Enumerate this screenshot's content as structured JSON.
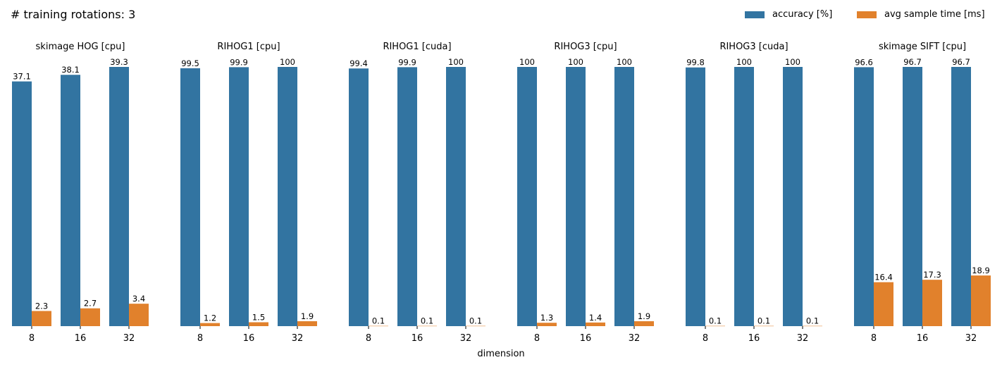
{
  "chart_data": {
    "type": "bar",
    "suptitle": "# training rotations: 3",
    "xlabel": "dimension",
    "ylabel": "",
    "legend_position": "top-right",
    "grid": false,
    "series": [
      {
        "name": "accuracy [%]",
        "color": "#3274a1"
      },
      {
        "name": "avg sample time [ms]",
        "color": "#e1812c"
      }
    ],
    "panels": [
      {
        "title": "skimage HOG [cpu]",
        "categories": [
          "8",
          "16",
          "32"
        ],
        "series_values": [
          [
            37.1,
            38.1,
            39.3
          ],
          [
            2.3,
            2.7,
            3.4
          ]
        ],
        "labels": [
          [
            "37.1",
            "38.1",
            "39.3"
          ],
          [
            "2.3",
            "2.7",
            "3.4"
          ]
        ]
      },
      {
        "title": "RIHOG1 [cpu]",
        "categories": [
          "8",
          "16",
          "32"
        ],
        "series_values": [
          [
            99.5,
            99.9,
            100
          ],
          [
            1.2,
            1.5,
            1.9
          ]
        ],
        "labels": [
          [
            "99.5",
            "99.9",
            "100"
          ],
          [
            "1.2",
            "1.5",
            "1.9"
          ]
        ]
      },
      {
        "title": "RIHOG1 [cuda]",
        "categories": [
          "8",
          "16",
          "32"
        ],
        "series_values": [
          [
            99.4,
            99.9,
            100
          ],
          [
            0.1,
            0.1,
            0.1
          ]
        ],
        "labels": [
          [
            "99.4",
            "99.9",
            "100"
          ],
          [
            "0.1",
            "0.1",
            "0.1"
          ]
        ]
      },
      {
        "title": "RIHOG3 [cpu]",
        "categories": [
          "8",
          "16",
          "32"
        ],
        "series_values": [
          [
            100,
            100,
            100
          ],
          [
            1.3,
            1.4,
            1.9
          ]
        ],
        "labels": [
          [
            "100",
            "100",
            "100"
          ],
          [
            "1.3",
            "1.4",
            "1.9"
          ]
        ]
      },
      {
        "title": "RIHOG3 [cuda]",
        "categories": [
          "8",
          "16",
          "32"
        ],
        "series_values": [
          [
            99.8,
            100,
            100
          ],
          [
            0.1,
            0.1,
            0.1
          ]
        ],
        "labels": [
          [
            "99.8",
            "100",
            "100"
          ],
          [
            "0.1",
            "0.1",
            "0.1"
          ]
        ]
      },
      {
        "title": "skimage SIFT [cpu]",
        "categories": [
          "8",
          "16",
          "32"
        ],
        "series_values": [
          [
            96.6,
            96.7,
            96.7
          ],
          [
            16.4,
            17.3,
            18.9
          ]
        ],
        "labels": [
          [
            "96.6",
            "96.7",
            "96.7"
          ],
          [
            "16.4",
            "17.3",
            "18.9"
          ]
        ]
      }
    ]
  }
}
